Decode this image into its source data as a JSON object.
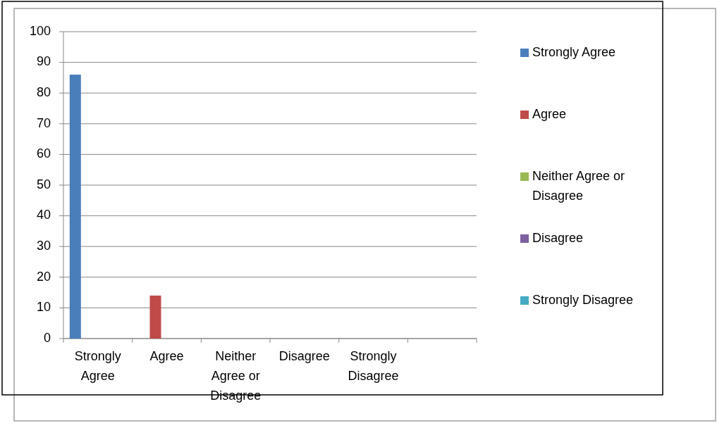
{
  "chart_data": {
    "type": "bar",
    "categories": [
      "Strongly Agree",
      "Agree",
      "Neither Agree or Disagree",
      "Disagree",
      "Strongly Disagree",
      null
    ],
    "series": [
      {
        "name": "Strongly Agree",
        "color": "#4a7ebb",
        "values": [
          86,
          null,
          null,
          null,
          null,
          null
        ]
      },
      {
        "name": "Agree",
        "color": "#be4b48",
        "values": [
          null,
          14,
          null,
          null,
          null,
          null
        ]
      },
      {
        "name": "Neither Agree or Disagree",
        "color": "#98b954",
        "values": [
          null,
          null,
          0,
          null,
          null,
          null
        ]
      },
      {
        "name": "Disagree",
        "color": "#7d60a0",
        "values": [
          null,
          null,
          null,
          0,
          null,
          null
        ]
      },
      {
        "name": "Strongly Disagree",
        "color": "#46aac5",
        "values": [
          null,
          null,
          null,
          null,
          0,
          null
        ]
      }
    ],
    "ylim": [
      0,
      100
    ],
    "yticks": [
      0,
      10,
      20,
      30,
      40,
      50,
      60,
      70,
      80,
      90,
      100
    ],
    "grid": "y",
    "legend": "right"
  }
}
